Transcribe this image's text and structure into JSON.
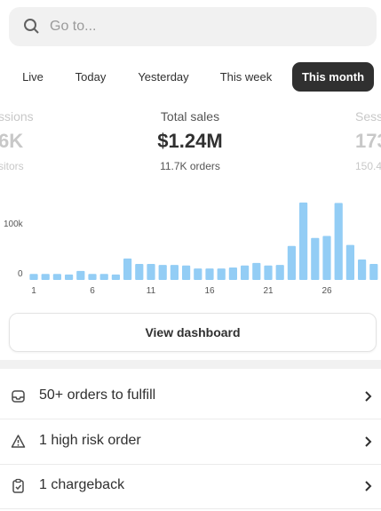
{
  "search": {
    "placeholder": "Go to..."
  },
  "tabs": [
    "Live",
    "Today",
    "Yesterday",
    "This week",
    "This month"
  ],
  "selected_tab": 4,
  "metrics": {
    "left": {
      "label": "ssions",
      "value": "6K",
      "sub": "sitors"
    },
    "center": {
      "label": "Total sales",
      "value": "$1.24M",
      "sub": "11.7K orders"
    },
    "right": {
      "label": "Sess",
      "value": "173",
      "sub": "150.4"
    }
  },
  "chart_data": {
    "type": "bar",
    "categories": [
      "1",
      null,
      null,
      null,
      null,
      "6",
      null,
      null,
      null,
      null,
      "11",
      null,
      null,
      null,
      null,
      "16",
      null,
      null,
      null,
      null,
      "21",
      null,
      null,
      null,
      null,
      "26",
      null,
      null,
      null,
      null
    ],
    "values": [
      12000,
      12000,
      12000,
      11000,
      18000,
      12000,
      12000,
      11000,
      43000,
      32000,
      32000,
      30000,
      30000,
      29000,
      23000,
      23000,
      23000,
      25000,
      29000,
      34000,
      29000,
      30000,
      68000,
      155000,
      84000,
      88000,
      154000,
      70000,
      41000,
      32000
    ],
    "color": "#93cdf5",
    "ylim": [
      0,
      160000
    ],
    "yticks": [
      0,
      {
        "value": 100000,
        "label": "100k"
      }
    ]
  },
  "button": "View dashboard",
  "tasks": [
    "50+ orders to fulfill",
    "1 high risk order",
    "1 chargeback"
  ]
}
